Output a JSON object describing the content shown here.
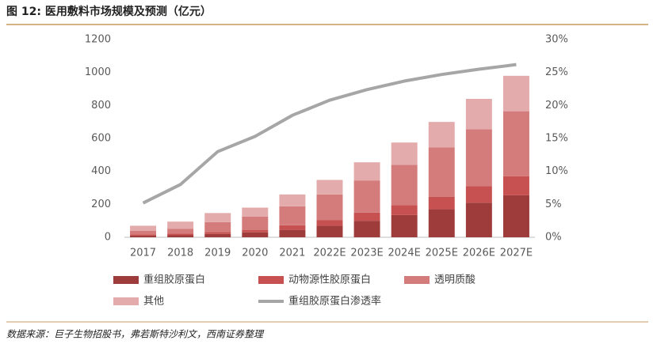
{
  "chart_data": {
    "type": "bar",
    "stacked": true,
    "title": "图 12: 医用敷料市场规模及预测（亿元）",
    "source": "数据来源：巨子生物招股书，弗若斯特沙利文，西南证券整理",
    "categories": [
      "2017",
      "2018",
      "2019",
      "2020",
      "2021",
      "2022E",
      "2023E",
      "2024E",
      "2025E",
      "2026E",
      "2027E"
    ],
    "series": [
      {
        "name": "重组胶原蛋白",
        "color": "#9e3b3b",
        "values": [
          10,
          12,
          20,
          30,
          45,
          70,
          100,
          135,
          170,
          210,
          255
        ]
      },
      {
        "name": "动物源性胶原蛋白",
        "color": "#c65150",
        "values": [
          8,
          10,
          12,
          15,
          28,
          35,
          50,
          60,
          75,
          100,
          115
        ]
      },
      {
        "name": "透明质酸",
        "color": "#d47c7b",
        "values": [
          22,
          30,
          60,
          80,
          115,
          155,
          195,
          245,
          300,
          345,
          395
        ]
      },
      {
        "name": "其他",
        "color": "#e3abab",
        "values": [
          30,
          43,
          55,
          55,
          72,
          88,
          110,
          135,
          155,
          185,
          215
        ]
      },
      {
        "name": "重组胶原蛋白渗透率",
        "type": "line",
        "axis": "y2",
        "color": "#a6a6a6",
        "values": [
          5.2,
          8.0,
          13.0,
          15.3,
          18.5,
          20.8,
          22.4,
          23.7,
          24.7,
          25.5,
          26.2
        ]
      }
    ],
    "ylim": [
      0,
      1200
    ],
    "yticks": [
      0,
      200,
      400,
      600,
      800,
      1000,
      1200
    ],
    "y2lim": [
      0,
      30
    ],
    "y2ticks": [
      {
        "value": 0,
        "label": "0%"
      },
      {
        "value": 5,
        "label": "5%"
      },
      {
        "value": 10,
        "label": "10%"
      },
      {
        "value": 15,
        "label": "15%"
      },
      {
        "value": 20,
        "label": "20%"
      },
      {
        "value": 25,
        "label": "25%"
      },
      {
        "value": 30,
        "label": "30%"
      }
    ],
    "grid": false
  }
}
